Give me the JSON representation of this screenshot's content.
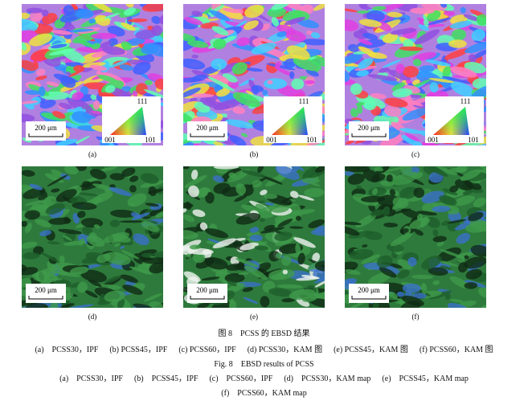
{
  "panels": [
    {
      "label": "(a)",
      "scale_bar": "200 μm",
      "legend": {
        "top": "111",
        "left": "001",
        "right": "101"
      }
    },
    {
      "label": "(b)",
      "scale_bar": "200 μm",
      "legend": {
        "top": "111",
        "left": "001",
        "right": "101"
      }
    },
    {
      "label": "(c)",
      "scale_bar": "200 μm",
      "legend": {
        "top": "111",
        "left": "001",
        "right": "101"
      }
    },
    {
      "label": "(d)",
      "scale_bar": "200 μm"
    },
    {
      "label": "(e)",
      "scale_bar": "200 μm"
    },
    {
      "label": "(f)",
      "scale_bar": "200 μm"
    }
  ],
  "caption": {
    "cn_title": "图 8　PCSS 的 EBSD 结果",
    "cn_items": [
      "(a)　PCSS30，IPF",
      "(b) PCSS45，IPF",
      "(c) PCSS60，IPF",
      "(d) PCSS30，KAM 图",
      "(e) PCSS45，KAM 图",
      "(f) PCSS60，KAM 图"
    ],
    "en_title": "Fig. 8　EBSD results of PCSS",
    "en_items": [
      "(a)　PCSS30，IPF",
      "(b)　PCSS45，IPF",
      "(c)　PCSS60，IPF",
      "(d)　PCSS30，KAM map",
      "(e)　PCSS45，KAM map"
    ],
    "en_items_last": "(f)　PCSS60，KAM map"
  }
}
